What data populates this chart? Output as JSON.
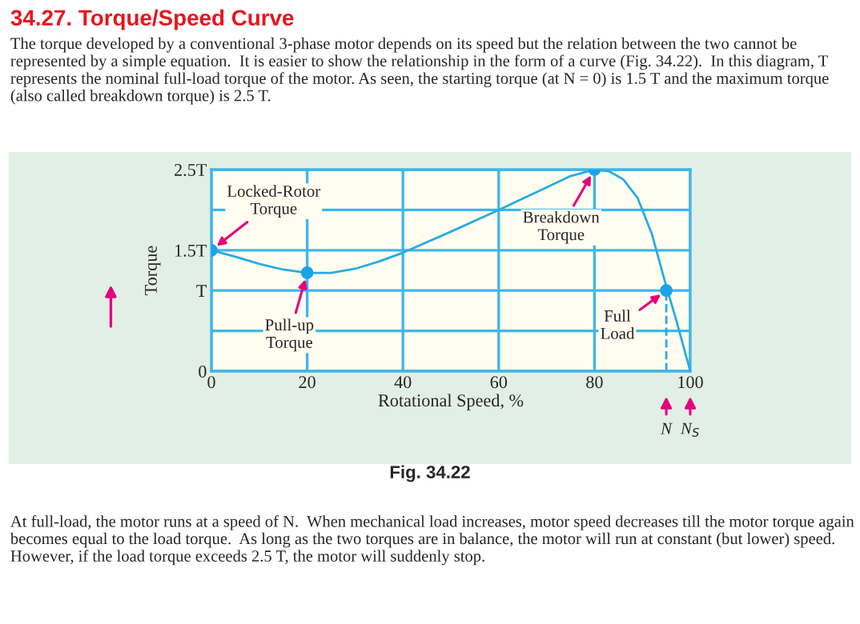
{
  "chart_data": {
    "type": "line",
    "title": "34.27. Torque/Speed Curve",
    "subtitle": "The torque developed by a conventional 3-phase motor depends on its speed but the relation between the two cannot be represented by a simple equation.  It is easier to show the relationship in the form of a curve (Fig. 34.22).  In this diagram, T represents the nominal full-load torque of the motor. As seen, the starting torque (at N = 0) is 1.5 T and the maximum torque (also called breakdown torque) is 2.5 T.",
    "xlabel": "Rotational Speed, %",
    "ylabel": "Torque",
    "series": [
      {
        "color": "#29abe2",
        "x": [
          0,
          5,
          10,
          15,
          20,
          25,
          30,
          35,
          40,
          50,
          60,
          70,
          75,
          80,
          83,
          86,
          89,
          92,
          95,
          97,
          100
        ],
        "values": [
          1.5,
          1.42,
          1.33,
          1.26,
          1.22,
          1.22,
          1.27,
          1.36,
          1.47,
          1.73,
          2.0,
          2.28,
          2.42,
          2.5,
          2.48,
          2.38,
          2.15,
          1.7,
          1.05,
          0.65,
          0
        ]
      },
      {
        "type": "scatter",
        "color": "#1aa3e8",
        "marker": "circle",
        "x": [
          0,
          20,
          80,
          95
        ],
        "values": [
          1.5,
          1.22,
          2.5,
          1.0
        ]
      }
    ],
    "xlim": [
      0,
      100
    ],
    "xticks": [
      0,
      20,
      40,
      60,
      80,
      100
    ],
    "ylim": [
      0,
      2.5
    ],
    "yticks": [
      0,
      {
        "value": 0.5,
        "label": null
      },
      {
        "value": 1,
        "label": "T"
      },
      {
        "value": 1.5,
        "label": "1.5T"
      },
      {
        "value": 2,
        "label": null
      },
      {
        "value": 2.5,
        "label": "2.5T"
      }
    ],
    "grid": true,
    "ref_lines": [
      {
        "axis": "x",
        "value": 95,
        "color": "#29abe2",
        "line_style": "dashed"
      }
    ],
    "annotations": [
      {
        "text": "Locked-Rotor\nTorque",
        "x": 0,
        "y": 1.5
      },
      {
        "text": "Pull-up\nTorque",
        "x": 20,
        "y": 1.22
      },
      {
        "text": "Breakdown\nTorque",
        "x": 80,
        "y": 2.5
      },
      {
        "text": "Full\nLoad",
        "x": 95,
        "y": 1.0
      },
      "Fig. 34.22",
      "N",
      "N$_{S}$",
      "At full-load, the motor runs at a speed of N.  When mechanical load increases, motor speed decreases till the motor torque again becomes equal to the load torque.  As long as the two torques are in balance, the motor will run at constant (but lower) speed.  However, if the load torque exceeds 2.5 T, the motor will suddenly stop."
    ]
  }
}
